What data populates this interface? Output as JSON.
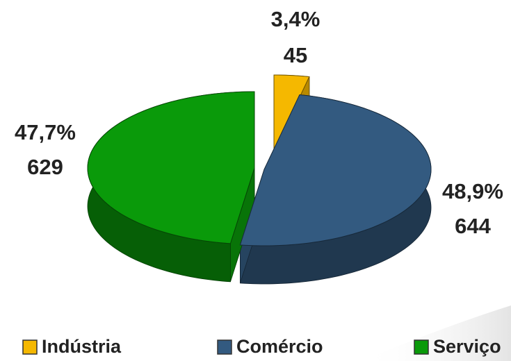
{
  "chart_data": {
    "type": "pie3d",
    "categories": [
      "Indústria",
      "Comércio",
      "Serviço"
    ],
    "values": [
      3.4,
      48.9,
      47.7
    ],
    "value_labels": [
      "3,4%",
      "48,9%",
      "47,7%"
    ],
    "counts": [
      45,
      644,
      629
    ],
    "colors": [
      "#f5b800",
      "#335a80",
      "#0a9a0a"
    ],
    "legend": "bottom"
  }
}
